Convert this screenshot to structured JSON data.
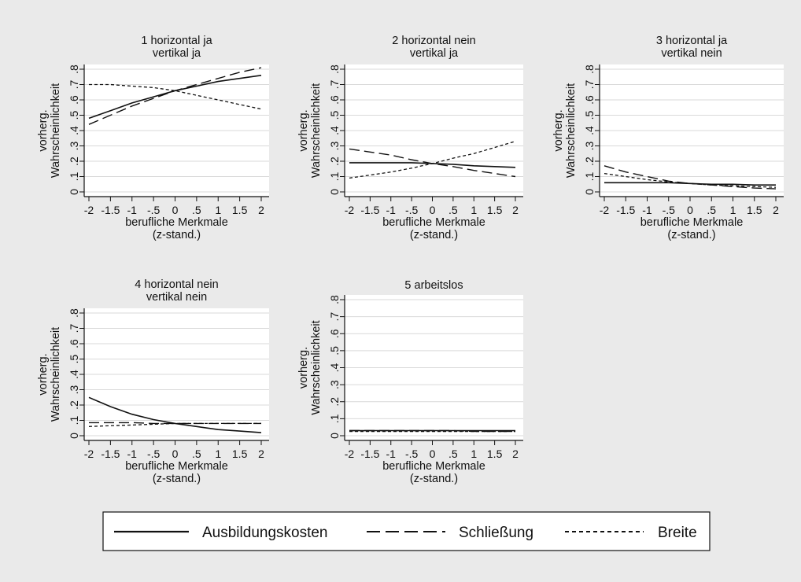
{
  "chart_data": [
    {
      "type": "line",
      "title": [
        "1 horizontal ja",
        "vertikal ja"
      ],
      "xlabel": [
        "berufliche Merkmale",
        "(z-stand.)"
      ],
      "ylabel": [
        "vorherg.",
        "Wahrscheinlichkeit"
      ],
      "x": [
        -2,
        -1.5,
        -1,
        -0.5,
        0,
        0.5,
        1,
        1.5,
        2
      ],
      "xticks": [
        "-2",
        "-1.5",
        "-1",
        "-.5",
        "0",
        ".5",
        "1",
        "1.5",
        "2"
      ],
      "yticks": [
        "0",
        ".1",
        ".2",
        ".3",
        ".4",
        ".5",
        ".6",
        ".7",
        ".8"
      ],
      "ylim": [
        0,
        0.8
      ],
      "grid": true,
      "series": [
        {
          "name": "Ausbildungskosten",
          "values": [
            0.48,
            0.53,
            0.58,
            0.62,
            0.66,
            0.69,
            0.72,
            0.74,
            0.76
          ]
        },
        {
          "name": "Schließung",
          "values": [
            0.44,
            0.5,
            0.56,
            0.61,
            0.66,
            0.7,
            0.74,
            0.78,
            0.81
          ]
        },
        {
          "name": "Breite",
          "values": [
            0.7,
            0.7,
            0.69,
            0.68,
            0.66,
            0.63,
            0.6,
            0.57,
            0.54
          ]
        }
      ]
    },
    {
      "type": "line",
      "title": [
        "2 horizontal nein",
        "vertikal ja"
      ],
      "xlabel": [
        "berufliche Merkmale",
        "(z-stand.)"
      ],
      "ylabel": [
        "vorherg.",
        "Wahrscheinlichkeit"
      ],
      "x": [
        -2,
        -1.5,
        -1,
        -0.5,
        0,
        0.5,
        1,
        1.5,
        2
      ],
      "xticks": [
        "-2",
        "-1.5",
        "-1",
        "-.5",
        "0",
        ".5",
        "1",
        "1.5",
        "2"
      ],
      "yticks": [
        "0",
        ".1",
        ".2",
        ".3",
        ".4",
        ".5",
        ".6",
        ".7",
        ".8"
      ],
      "ylim": [
        0,
        0.8
      ],
      "grid": true,
      "series": [
        {
          "name": "Ausbildungskosten",
          "values": [
            0.19,
            0.19,
            0.19,
            0.19,
            0.185,
            0.18,
            0.17,
            0.165,
            0.16
          ]
        },
        {
          "name": "Schließung",
          "values": [
            0.28,
            0.26,
            0.24,
            0.21,
            0.185,
            0.165,
            0.14,
            0.12,
            0.1
          ]
        },
        {
          "name": "Breite",
          "values": [
            0.09,
            0.11,
            0.13,
            0.155,
            0.185,
            0.22,
            0.25,
            0.29,
            0.33
          ]
        }
      ]
    },
    {
      "type": "line",
      "title": [
        "3 horizontal ja",
        "vertikal nein"
      ],
      "xlabel": [
        "berufliche Merkmale",
        "(z-stand.)"
      ],
      "ylabel": [
        "vorherg.",
        "Wahrscheinlichkeit"
      ],
      "x": [
        -2,
        -1.5,
        -1,
        -0.5,
        0,
        0.5,
        1,
        1.5,
        2
      ],
      "xticks": [
        "-2",
        "-1.5",
        "-1",
        "-.5",
        "0",
        ".5",
        "1",
        "1.5",
        "2"
      ],
      "yticks": [
        "0",
        ".1",
        ".2",
        ".3",
        ".4",
        ".5",
        ".6",
        ".7",
        ".8"
      ],
      "ylim": [
        0,
        0.8
      ],
      "grid": true,
      "series": [
        {
          "name": "Ausbildungskosten",
          "values": [
            0.06,
            0.06,
            0.06,
            0.06,
            0.055,
            0.05,
            0.05,
            0.045,
            0.045
          ]
        },
        {
          "name": "Schließung",
          "values": [
            0.17,
            0.13,
            0.1,
            0.07,
            0.055,
            0.045,
            0.035,
            0.025,
            0.02
          ]
        },
        {
          "name": "Breite",
          "values": [
            0.12,
            0.1,
            0.08,
            0.065,
            0.055,
            0.045,
            0.04,
            0.035,
            0.03
          ]
        }
      ]
    },
    {
      "type": "line",
      "title": [
        "4 horizontal nein",
        "vertikal nein"
      ],
      "xlabel": [
        "berufliche Merkmale",
        "(z-stand.)"
      ],
      "ylabel": [
        "vorherg.",
        "Wahrscheinlichkeit"
      ],
      "x": [
        -2,
        -1.5,
        -1,
        -0.5,
        0,
        0.5,
        1,
        1.5,
        2
      ],
      "xticks": [
        "-2",
        "-1.5",
        "-1",
        "-.5",
        "0",
        ".5",
        "1",
        "1.5",
        "2"
      ],
      "yticks": [
        "0",
        ".1",
        ".2",
        ".3",
        ".4",
        ".5",
        ".6",
        ".7",
        ".8"
      ],
      "ylim": [
        0,
        0.8
      ],
      "grid": true,
      "series": [
        {
          "name": "Ausbildungskosten",
          "values": [
            0.25,
            0.19,
            0.14,
            0.105,
            0.08,
            0.06,
            0.04,
            0.03,
            0.02
          ]
        },
        {
          "name": "Schließung",
          "values": [
            0.085,
            0.085,
            0.085,
            0.08,
            0.08,
            0.08,
            0.08,
            0.08,
            0.08
          ]
        },
        {
          "name": "Breite",
          "values": [
            0.06,
            0.065,
            0.07,
            0.075,
            0.08,
            0.08,
            0.08,
            0.08,
            0.08
          ]
        }
      ]
    },
    {
      "type": "line",
      "title": [
        "5 arbeitslos"
      ],
      "xlabel": [
        "berufliche Merkmale",
        "(z-stand.)"
      ],
      "ylabel": [
        "vorherg.",
        "Wahrscheinlichkeit"
      ],
      "x": [
        -2,
        -1.5,
        -1,
        -0.5,
        0,
        0.5,
        1,
        1.5,
        2
      ],
      "xticks": [
        "-2",
        "-1.5",
        "-1",
        "-.5",
        "0",
        ".5",
        "1",
        "1.5",
        "2"
      ],
      "yticks": [
        "0",
        ".1",
        ".2",
        ".3",
        ".4",
        ".5",
        ".6",
        ".7",
        ".8"
      ],
      "ylim": [
        0,
        0.8
      ],
      "grid": true,
      "series": [
        {
          "name": "Ausbildungskosten",
          "values": [
            0.03,
            0.03,
            0.03,
            0.03,
            0.03,
            0.03,
            0.03,
            0.03,
            0.03
          ]
        },
        {
          "name": "Schließung",
          "values": [
            0.03,
            0.03,
            0.03,
            0.03,
            0.03,
            0.03,
            0.025,
            0.025,
            0.025
          ]
        },
        {
          "name": "Breite",
          "values": [
            0.025,
            0.025,
            0.025,
            0.025,
            0.025,
            0.025,
            0.025,
            0.025,
            0.025
          ]
        }
      ]
    }
  ],
  "legend": {
    "placement": "bottom",
    "items": [
      {
        "label": "Ausbildungskosten",
        "style": "solid"
      },
      {
        "label": "Schließung",
        "style": "long-dash"
      },
      {
        "label": "Breite",
        "style": "short-dash"
      }
    ]
  },
  "colors": {
    "background": "#eaeaea",
    "plot_background": "#ffffff",
    "grid": "#d9d9d9",
    "line": "#111111"
  }
}
